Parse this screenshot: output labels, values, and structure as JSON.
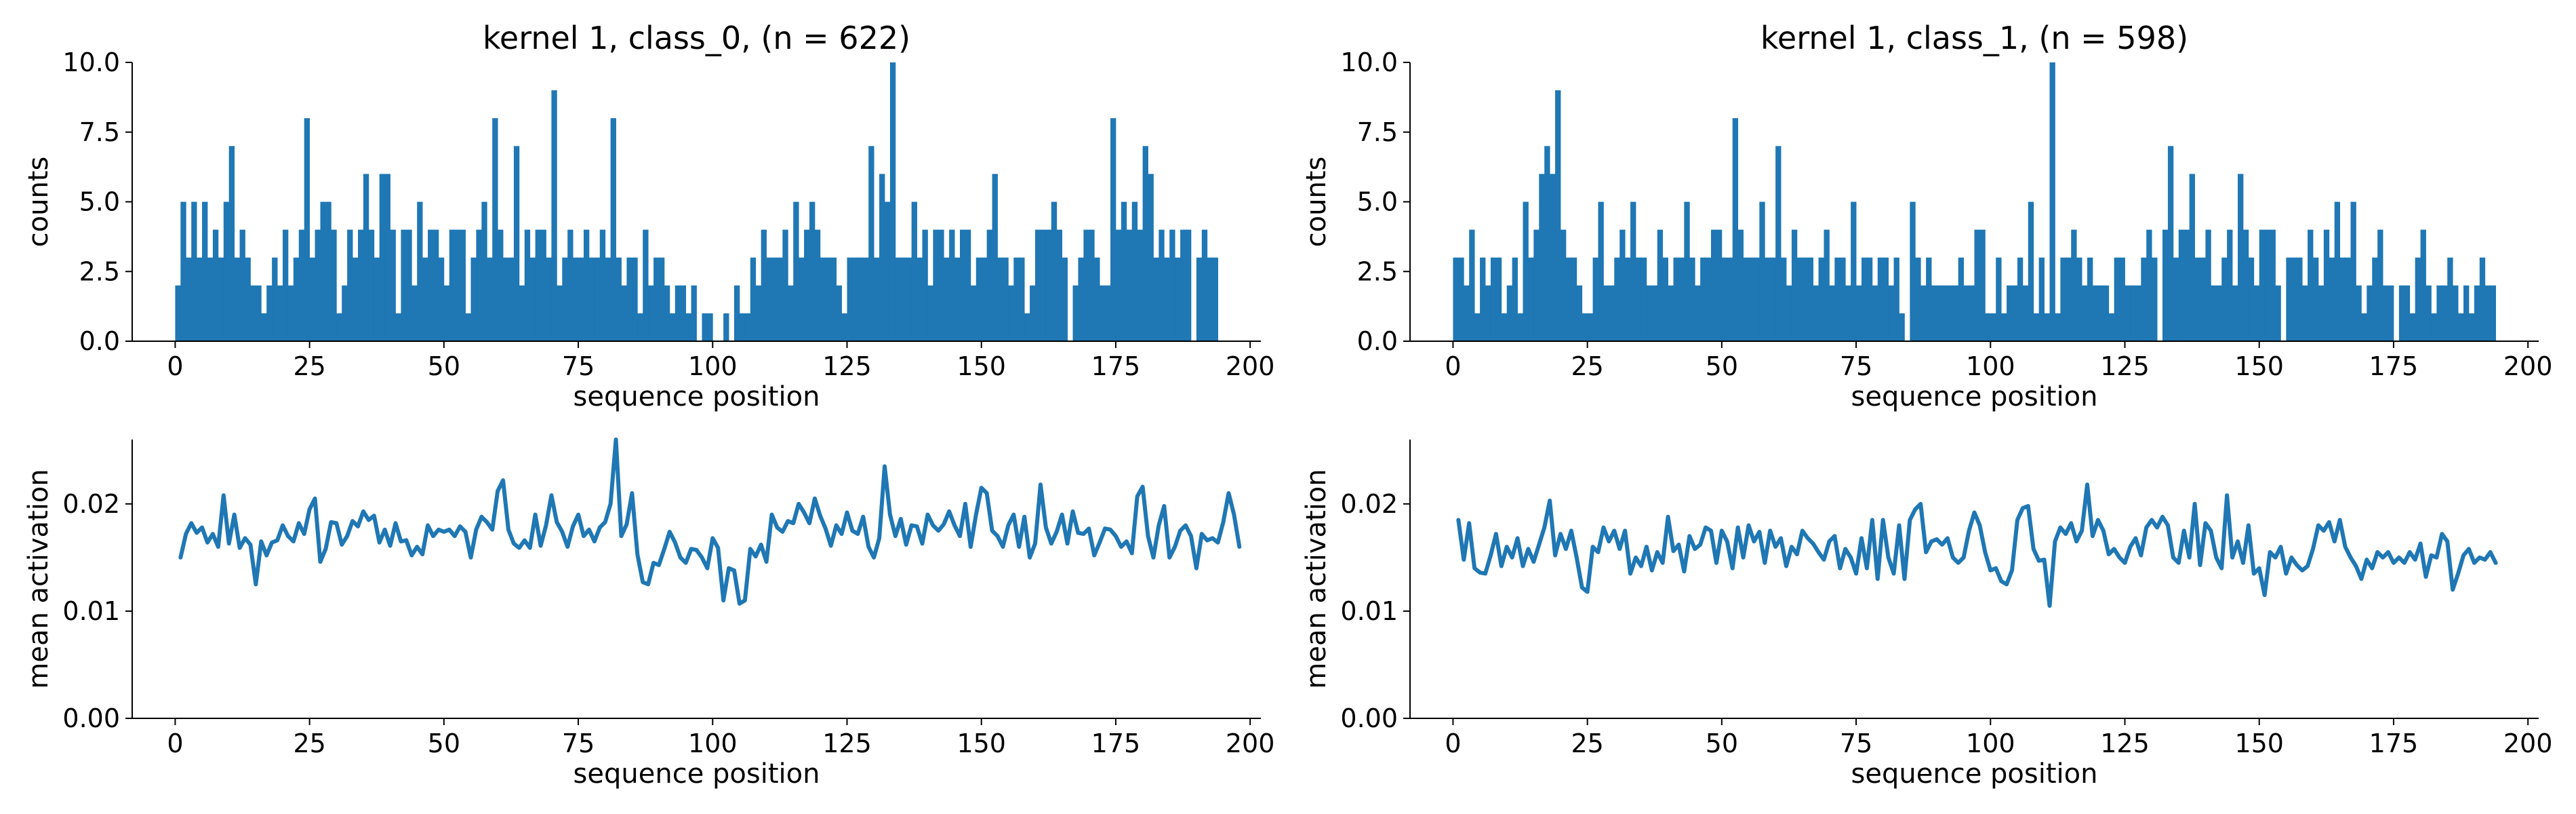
{
  "style": {
    "bar_color": "#1f77b4",
    "line_color": "#1f77b4"
  },
  "chart_data": [
    {
      "type": "bar",
      "title": "kernel 1, class_0, (n = 622)",
      "xlabel": "sequence position",
      "ylabel": "counts",
      "xlim": [
        -8,
        202
      ],
      "ylim": [
        0,
        10
      ],
      "xticks": [
        0,
        25,
        50,
        75,
        100,
        125,
        150,
        175,
        200
      ],
      "xtick_labels": [
        "0",
        "25",
        "50",
        "75",
        "100",
        "125",
        "150",
        "175",
        "200"
      ],
      "yticks": [
        0,
        2.5,
        5,
        7.5,
        10
      ],
      "ytick_labels": [
        "0.0",
        "2.5",
        "5.0",
        "7.5",
        "10.0"
      ],
      "bin_start": 0,
      "bin_width": 1,
      "values": [
        2,
        5,
        3,
        5,
        3,
        5,
        3,
        4,
        3,
        5,
        7,
        3,
        4,
        3,
        2,
        2,
        1,
        2,
        3,
        2,
        4,
        2,
        3,
        4,
        8,
        3,
        4,
        5,
        5,
        4,
        1,
        2,
        4,
        3,
        4,
        6,
        4,
        3,
        6,
        6,
        4,
        1,
        4,
        4,
        2,
        5,
        3,
        4,
        4,
        3,
        2,
        4,
        4,
        4,
        1,
        3,
        4,
        5,
        3,
        8,
        4,
        3,
        3,
        7,
        2,
        4,
        3,
        4,
        4,
        3,
        9,
        2,
        3,
        4,
        3,
        3,
        4,
        3,
        3,
        4,
        3,
        8,
        3,
        2,
        3,
        3,
        1,
        4,
        2,
        3,
        3,
        2,
        1,
        2,
        2,
        1,
        2,
        0,
        1,
        1,
        0,
        0,
        1,
        0,
        2,
        1,
        1,
        3,
        2,
        4,
        3,
        3,
        3,
        4,
        2,
        5,
        3,
        4,
        5,
        4,
        3,
        3,
        3,
        2,
        1,
        3,
        3,
        3,
        3,
        7,
        3,
        6,
        5,
        10,
        3,
        3,
        3,
        5,
        3,
        4,
        2,
        4,
        4,
        3,
        4,
        3,
        4,
        4,
        2,
        3,
        3,
        4,
        6,
        3,
        3,
        2,
        3,
        3,
        1,
        2,
        4,
        4,
        4,
        5,
        4,
        3,
        0,
        2,
        3,
        4,
        4,
        3,
        2,
        2,
        8,
        4,
        5,
        4,
        5,
        4,
        7,
        6,
        3,
        4,
        3,
        4,
        3,
        4,
        4,
        0,
        3,
        4,
        3,
        3
      ]
    },
    {
      "type": "bar",
      "title": "kernel 1, class_1, (n = 598)",
      "xlabel": "sequence position",
      "ylabel": "counts",
      "xlim": [
        -8,
        202
      ],
      "ylim": [
        0,
        10
      ],
      "xticks": [
        0,
        25,
        50,
        75,
        100,
        125,
        150,
        175,
        200
      ],
      "xtick_labels": [
        "0",
        "25",
        "50",
        "75",
        "100",
        "125",
        "150",
        "175",
        "200"
      ],
      "yticks": [
        0,
        2.5,
        5,
        7.5,
        10
      ],
      "ytick_labels": [
        "0.0",
        "2.5",
        "5.0",
        "7.5",
        "10.0"
      ],
      "bin_start": 0,
      "bin_width": 1,
      "values": [
        3,
        3,
        2,
        4,
        1,
        3,
        2,
        3,
        3,
        1,
        2,
        3,
        1,
        5,
        3,
        4,
        6,
        7,
        6,
        9,
        4,
        3,
        3,
        2,
        1,
        1,
        3,
        5,
        2,
        2,
        3,
        4,
        3,
        5,
        3,
        3,
        2,
        2,
        4,
        3,
        2,
        3,
        3,
        5,
        3,
        2,
        3,
        3,
        4,
        4,
        3,
        3,
        8,
        4,
        3,
        3,
        3,
        5,
        3,
        3,
        7,
        3,
        2,
        4,
        3,
        3,
        3,
        2,
        3,
        4,
        2,
        3,
        3,
        2,
        5,
        2,
        3,
        3,
        2,
        3,
        3,
        2,
        3,
        1,
        0,
        5,
        3,
        2,
        3,
        2,
        2,
        2,
        2,
        2,
        3,
        2,
        2,
        4,
        4,
        1,
        1,
        3,
        1,
        2,
        2,
        3,
        2,
        5,
        1,
        3,
        1,
        10,
        1,
        3,
        3,
        4,
        3,
        2,
        3,
        2,
        2,
        2,
        1,
        3,
        3,
        2,
        2,
        2,
        3,
        4,
        3,
        0,
        4,
        7,
        3,
        4,
        4,
        6,
        3,
        3,
        4,
        2,
        2,
        3,
        4,
        2,
        6,
        4,
        3,
        2,
        4,
        4,
        4,
        2,
        0,
        3,
        3,
        3,
        2,
        4,
        3,
        2,
        4,
        3,
        5,
        3,
        3,
        5,
        2,
        1,
        2,
        3,
        4,
        2,
        2,
        0,
        2,
        2,
        1,
        3,
        4,
        2,
        1,
        2,
        2,
        3,
        2,
        1,
        2,
        1,
        2,
        3,
        2,
        2
      ]
    },
    {
      "type": "line",
      "title": "",
      "xlabel": "sequence position",
      "ylabel": "mean activation",
      "xlim": [
        -8,
        202
      ],
      "ylim": [
        0,
        0.026
      ],
      "xticks": [
        0,
        25,
        50,
        75,
        100,
        125,
        150,
        175,
        200
      ],
      "xtick_labels": [
        "0",
        "25",
        "50",
        "75",
        "100",
        "125",
        "150",
        "175",
        "200"
      ],
      "yticks": [
        0,
        0.01,
        0.02
      ],
      "ytick_labels": [
        "0.00",
        "0.01",
        "0.02"
      ],
      "x_start": 1,
      "x_step": 1,
      "values": [
        0.015,
        0.0172,
        0.0182,
        0.0173,
        0.0178,
        0.0164,
        0.0172,
        0.016,
        0.0208,
        0.0163,
        0.019,
        0.0159,
        0.0168,
        0.0162,
        0.0125,
        0.0165,
        0.0152,
        0.0164,
        0.0166,
        0.018,
        0.017,
        0.0165,
        0.0182,
        0.0172,
        0.0195,
        0.0205,
        0.0146,
        0.0158,
        0.0183,
        0.0182,
        0.0162,
        0.017,
        0.0184,
        0.0179,
        0.0193,
        0.0185,
        0.0189,
        0.0164,
        0.0176,
        0.0161,
        0.0182,
        0.0165,
        0.0166,
        0.0152,
        0.016,
        0.0153,
        0.018,
        0.017,
        0.0176,
        0.0174,
        0.0176,
        0.017,
        0.0179,
        0.0174,
        0.015,
        0.0176,
        0.0188,
        0.0183,
        0.0176,
        0.0212,
        0.0222,
        0.0176,
        0.0163,
        0.0159,
        0.0166,
        0.0159,
        0.019,
        0.0161,
        0.018,
        0.0208,
        0.0183,
        0.0174,
        0.016,
        0.0179,
        0.019,
        0.017,
        0.0176,
        0.0165,
        0.0178,
        0.0183,
        0.02,
        0.026,
        0.017,
        0.0181,
        0.021,
        0.0153,
        0.0127,
        0.0125,
        0.0145,
        0.0143,
        0.0158,
        0.0174,
        0.0164,
        0.015,
        0.0145,
        0.0158,
        0.0157,
        0.015,
        0.014,
        0.0168,
        0.0159,
        0.011,
        0.014,
        0.0138,
        0.0107,
        0.011,
        0.0158,
        0.0151,
        0.0162,
        0.0146,
        0.019,
        0.0178,
        0.0174,
        0.0184,
        0.0182,
        0.02,
        0.0192,
        0.0182,
        0.0205,
        0.0189,
        0.0177,
        0.0161,
        0.018,
        0.0172,
        0.0192,
        0.0175,
        0.0172,
        0.0188,
        0.016,
        0.015,
        0.0168,
        0.0235,
        0.019,
        0.017,
        0.0186,
        0.0162,
        0.018,
        0.0179,
        0.0163,
        0.019,
        0.018,
        0.0175,
        0.0181,
        0.0193,
        0.018,
        0.017,
        0.02,
        0.016,
        0.019,
        0.0215,
        0.021,
        0.0175,
        0.017,
        0.016,
        0.018,
        0.019,
        0.016,
        0.0188,
        0.015,
        0.0163,
        0.0218,
        0.0178,
        0.0163,
        0.0174,
        0.019,
        0.0163,
        0.0193,
        0.0173,
        0.0172,
        0.0177,
        0.0152,
        0.0164,
        0.0177,
        0.0176,
        0.017,
        0.016,
        0.0165,
        0.0154,
        0.0207,
        0.0216,
        0.017,
        0.015,
        0.018,
        0.0198,
        0.015,
        0.016,
        0.0175,
        0.018,
        0.017,
        0.014,
        0.0172,
        0.0166,
        0.0168,
        0.0164,
        0.0183,
        0.021,
        0.019,
        0.016
      ]
    },
    {
      "type": "line",
      "title": "",
      "xlabel": "sequence position",
      "ylabel": "mean activation",
      "xlim": [
        -8,
        202
      ],
      "ylim": [
        0,
        0.026
      ],
      "xticks": [
        0,
        25,
        50,
        75,
        100,
        125,
        150,
        175,
        200
      ],
      "xtick_labels": [
        "0",
        "25",
        "50",
        "75",
        "100",
        "125",
        "150",
        "175",
        "200"
      ],
      "yticks": [
        0,
        0.01,
        0.02
      ],
      "ytick_labels": [
        "0.00",
        "0.01",
        "0.02"
      ],
      "x_start": 1,
      "x_step": 1,
      "values": [
        0.0185,
        0.0148,
        0.0182,
        0.014,
        0.0136,
        0.0135,
        0.0152,
        0.0172,
        0.0142,
        0.016,
        0.015,
        0.0168,
        0.0142,
        0.0158,
        0.0146,
        0.0162,
        0.0178,
        0.0203,
        0.0152,
        0.0172,
        0.0158,
        0.0175,
        0.015,
        0.0122,
        0.0118,
        0.016,
        0.0155,
        0.0178,
        0.0165,
        0.0175,
        0.0158,
        0.0175,
        0.0135,
        0.015,
        0.0142,
        0.016,
        0.0138,
        0.0155,
        0.0145,
        0.0188,
        0.0156,
        0.0162,
        0.0137,
        0.017,
        0.0158,
        0.0162,
        0.0178,
        0.0175,
        0.0145,
        0.0175,
        0.0165,
        0.014,
        0.0178,
        0.015,
        0.018,
        0.0165,
        0.0174,
        0.0145,
        0.0175,
        0.016,
        0.0168,
        0.0142,
        0.016,
        0.0153,
        0.0175,
        0.0168,
        0.0163,
        0.0155,
        0.0148,
        0.0165,
        0.017,
        0.014,
        0.0158,
        0.015,
        0.0135,
        0.0168,
        0.014,
        0.0185,
        0.013,
        0.0185,
        0.015,
        0.0135,
        0.018,
        0.013,
        0.0185,
        0.0195,
        0.02,
        0.0155,
        0.0165,
        0.0167,
        0.0162,
        0.0168,
        0.015,
        0.0145,
        0.015,
        0.0175,
        0.0192,
        0.018,
        0.0155,
        0.0138,
        0.014,
        0.0128,
        0.0125,
        0.0138,
        0.0185,
        0.0196,
        0.0198,
        0.0158,
        0.0147,
        0.0148,
        0.0105,
        0.0165,
        0.0178,
        0.0172,
        0.0182,
        0.0165,
        0.0175,
        0.0218,
        0.017,
        0.0185,
        0.0175,
        0.0153,
        0.0158,
        0.015,
        0.0145,
        0.016,
        0.0168,
        0.0152,
        0.0178,
        0.0185,
        0.0178,
        0.0188,
        0.018,
        0.015,
        0.0145,
        0.0175,
        0.015,
        0.02,
        0.0143,
        0.0182,
        0.0175,
        0.015,
        0.014,
        0.0208,
        0.015,
        0.0165,
        0.0145,
        0.018,
        0.0135,
        0.014,
        0.0115,
        0.0155,
        0.015,
        0.016,
        0.0135,
        0.015,
        0.0143,
        0.0138,
        0.0142,
        0.0158,
        0.018,
        0.0175,
        0.0183,
        0.0165,
        0.0185,
        0.016,
        0.015,
        0.0142,
        0.013,
        0.0148,
        0.014,
        0.0155,
        0.015,
        0.0155,
        0.0145,
        0.015,
        0.0145,
        0.0155,
        0.0148,
        0.0163,
        0.0132,
        0.0152,
        0.015,
        0.0172,
        0.0165,
        0.012,
        0.0135,
        0.0152,
        0.0158,
        0.0145,
        0.015,
        0.0148,
        0.0155,
        0.0145
      ]
    }
  ]
}
